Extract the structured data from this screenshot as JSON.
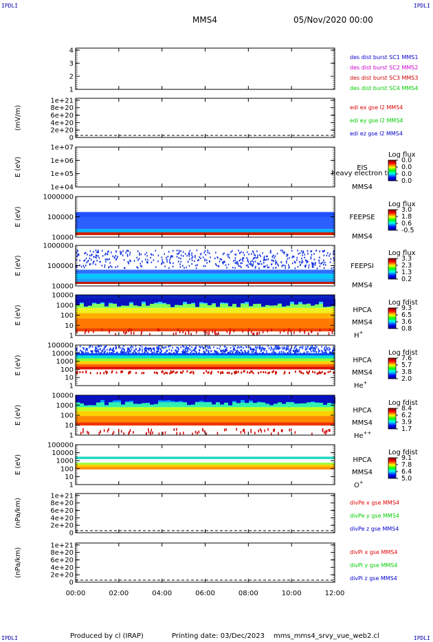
{
  "corners": {
    "tl": "IPDLI",
    "tr": "IPDLI",
    "bl": "IPDLI",
    "br": "IPDLI"
  },
  "header": {
    "title": "MMS4",
    "date": "05/Nov/2020 00:00"
  },
  "footer": {
    "produced": "Produced by cl (IRAP)",
    "printing": "Printing date: 03/Dec/2023",
    "file": "mms_mms4_srvy_vue_web2.cl"
  },
  "colors": {
    "mms1": "#0000cc",
    "mms2": "#cc00cc",
    "mms3": "#cc0000",
    "mms4": "#00cc00",
    "red": "#dd0000",
    "green": "#00cc00",
    "blue": "#0000cc"
  },
  "chart_data": [
    {
      "type": "line",
      "ylabel": "",
      "yticks": [
        "1",
        "2",
        "3",
        "4"
      ],
      "legend": [
        {
          "label": "des dist burst SC1 MMS1",
          "color": "#0000cc"
        },
        {
          "label": "des dist burst SC2 MMS2",
          "color": "#cc00cc"
        },
        {
          "label": "des dist burst SC3 MMS3",
          "color": "#cc0000"
        },
        {
          "label": "des dist burst SC4 MMS4",
          "color": "#00cc00"
        }
      ]
    },
    {
      "type": "line",
      "ylabel": "(mV/m)",
      "yticks": [
        "0",
        "2e+20",
        "4e+20",
        "6e+20",
        "8e+20",
        "1e+21"
      ],
      "legend": [
        {
          "label": "edi ex gse l2 MMS4",
          "color": "#dd0000"
        },
        {
          "label": "edi ey gse l2 MMS4",
          "color": "#00cc00"
        },
        {
          "label": "edi ez gse l2 MMS4",
          "color": "#0000cc"
        }
      ]
    },
    {
      "type": "heatmap",
      "ylabel": "E (eV)",
      "yticks": [
        "1e+04",
        "1e+05",
        "1e+06",
        "1e+07"
      ],
      "instrument": "EIS",
      "spacecraft": "MMS4",
      "overlay": "heavy electron to",
      "cbar_title": "Log flux",
      "cbar_ticks": [
        "0.0",
        "0.0",
        "0.0",
        "0.0"
      ]
    },
    {
      "type": "heatmap",
      "ylabel": "E (eV)",
      "yticks": [
        "10000",
        "100000",
        "1000000"
      ],
      "instrument": "FEEPSE",
      "spacecraft": "MMS4",
      "cbar_title": "Log flux",
      "cbar_ticks": [
        "3.0",
        "1.8",
        "0.6",
        "-0.5"
      ]
    },
    {
      "type": "heatmap",
      "ylabel": "E (eV)",
      "yticks": [
        "10000",
        "100000",
        "1000000"
      ],
      "instrument": "FEEPSI",
      "spacecraft": "MMS4",
      "cbar_title": "Log flux",
      "cbar_ticks": [
        "3.3",
        "2.3",
        "1.3",
        "0.2"
      ]
    },
    {
      "type": "heatmap",
      "ylabel": "E (eV)",
      "yticks": [
        "1",
        "10",
        "100",
        "1000",
        "10000"
      ],
      "instrument": "HPCA",
      "spacecraft": "MMS4",
      "species": "H",
      "species_sup": "+",
      "cbar_title": "Log fdist",
      "cbar_ticks": [
        "9.3",
        "6.5",
        "3.6",
        "0.8"
      ]
    },
    {
      "type": "heatmap",
      "ylabel": "E (eV)",
      "yticks": [
        "1",
        "10",
        "100",
        "1000",
        "10000",
        "100000"
      ],
      "instrument": "HPCA",
      "spacecraft": "MMS4",
      "species": "He",
      "species_sup": "+",
      "cbar_title": "Log fdist",
      "cbar_ticks": [
        "7.6",
        "5.7",
        "3.8",
        "2.0"
      ]
    },
    {
      "type": "heatmap",
      "ylabel": "E (eV)",
      "yticks": [
        "1",
        "10",
        "100",
        "1000",
        "10000"
      ],
      "instrument": "HPCA",
      "spacecraft": "MMS4",
      "species": "He",
      "species_sup": "++",
      "cbar_title": "Log fdist",
      "cbar_ticks": [
        "8.4",
        "6.2",
        "3.9",
        "1.7"
      ]
    },
    {
      "type": "heatmap",
      "ylabel": "E (eV)",
      "yticks": [
        "1",
        "10",
        "100",
        "1000",
        "10000",
        "100000"
      ],
      "instrument": "HPCA",
      "spacecraft": "MMS4",
      "species": "O",
      "species_sup": "+",
      "cbar_title": "Log fdist",
      "cbar_ticks": [
        "9.1",
        "7.8",
        "6.4",
        "5.0"
      ]
    },
    {
      "type": "line",
      "ylabel": "(nPa/km)",
      "yticks": [
        "0",
        "2e+20",
        "4e+20",
        "6e+20",
        "8e+20",
        "1e+21"
      ],
      "legend": [
        {
          "label": "divPe x gse MMS4",
          "color": "#dd0000"
        },
        {
          "label": "divPe y gse MMS4",
          "color": "#00cc00"
        },
        {
          "label": "divPe z gse MMS4",
          "color": "#0000cc"
        }
      ]
    },
    {
      "type": "line",
      "ylabel": "(nPa/km)",
      "yticks": [
        "0",
        "2e+20",
        "4e+20",
        "6e+20",
        "8e+20",
        "1e+21"
      ],
      "legend": [
        {
          "label": "divPi x gse MMS4",
          "color": "#dd0000"
        },
        {
          "label": "divPi y gse MMS4",
          "color": "#00cc00"
        },
        {
          "label": "divPi z gse MMS4",
          "color": "#0000cc"
        }
      ]
    }
  ],
  "xaxis": {
    "ticks": [
      "00:00",
      "02:00",
      "04:00",
      "06:00",
      "08:00",
      "10:00",
      "12:00"
    ]
  }
}
